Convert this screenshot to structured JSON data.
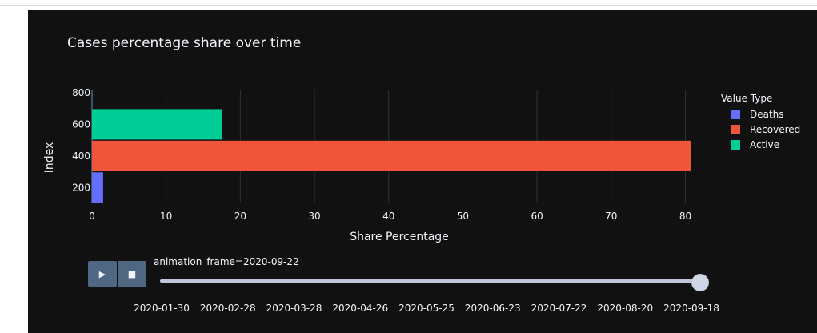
{
  "chart_data": {
    "type": "bar",
    "orientation": "horizontal",
    "title": "Cases percentage share over time",
    "xlabel": "Share Percentage",
    "ylabel": "Index",
    "xlim": [
      0,
      82
    ],
    "ylim": [
      100,
      820
    ],
    "xticks": [
      0,
      10,
      20,
      30,
      40,
      50,
      60,
      70,
      80
    ],
    "yticks": [
      200,
      400,
      600,
      800
    ],
    "legend_title": "Value Type",
    "series": [
      {
        "name": "Deaths",
        "index": 200,
        "value": 1.5,
        "color": "#636efa"
      },
      {
        "name": "Recovered",
        "index": 400,
        "value": 80.8,
        "color": "#ef553b"
      },
      {
        "name": "Active",
        "index": 600,
        "value": 17.5,
        "color": "#00cc96"
      }
    ]
  },
  "animation": {
    "current_label": "animation_frame=2020-09-22",
    "play_icon": "play-icon",
    "stop_icon": "stop-icon",
    "play_glyph": "▶",
    "stop_glyph": "■",
    "ticks": [
      "2020-01-30",
      "2020-02-28",
      "2020-03-28",
      "2020-04-26",
      "2020-05-25",
      "2020-06-23",
      "2020-07-22",
      "2020-08-20",
      "2020-09-18"
    ]
  }
}
